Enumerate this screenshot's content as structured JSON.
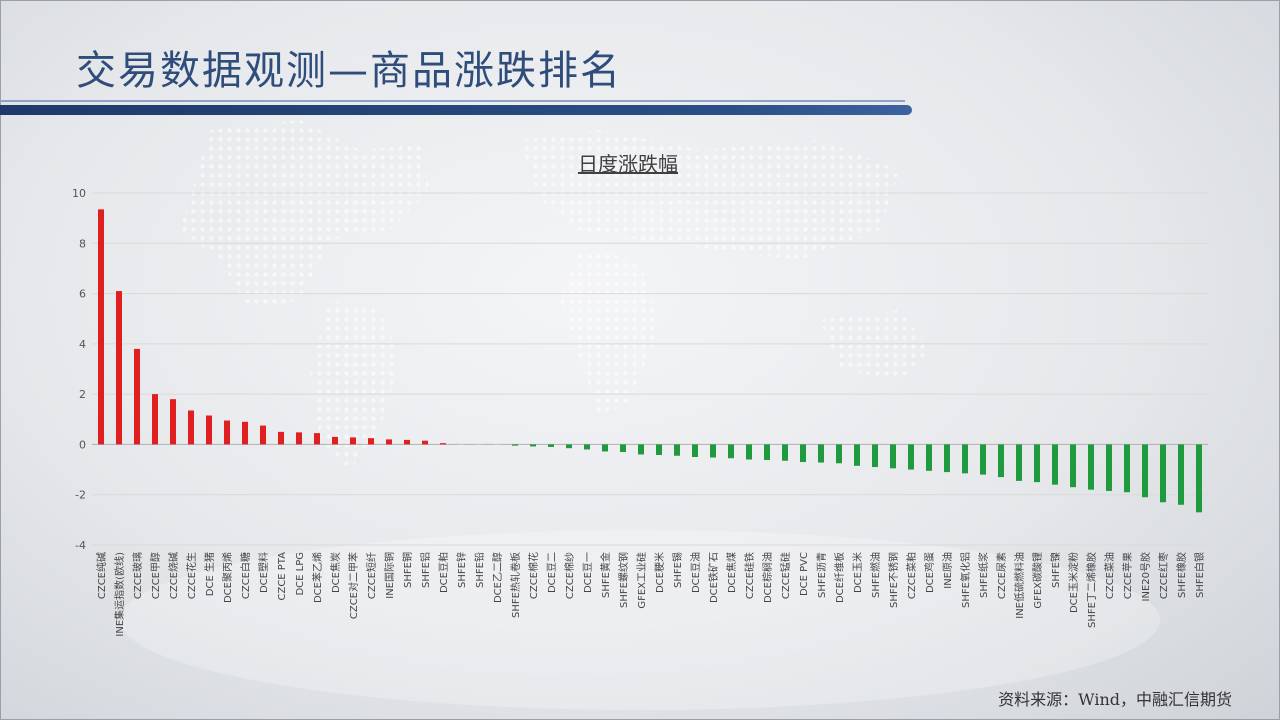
{
  "header": {
    "title": "交易数据观测—商品涨跌排名"
  },
  "footer": {
    "source": "资料来源：Wind，中融汇信期货"
  },
  "colors": {
    "up": "#e02020",
    "down": "#1f9a3e",
    "zero": "#c8c8c8",
    "title": "#2e4d7a"
  },
  "chart_data": {
    "type": "bar",
    "title": "日度涨跌幅",
    "xlabel": "",
    "ylabel": "",
    "ylim": [
      -4,
      10
    ],
    "yticks": [
      10,
      8,
      6,
      4,
      2,
      0,
      -2,
      -4
    ],
    "grid": true,
    "legend": "none",
    "categories": [
      "CZCE纯碱",
      "INE集运指数(欧线)",
      "CZCE玻璃",
      "CZCE甲醇",
      "CZCE烧碱",
      "CZCE花生",
      "DCE 生猪",
      "DCE聚丙烯",
      "CZCE白糖",
      "DCE塑料",
      "CZCE PTA",
      "DCE LPG",
      "DCE苯乙烯",
      "DCE焦炭",
      "CZCE对二甲苯",
      "CZCE短纤",
      "INE国际铜",
      "SHFE铜",
      "SHFE铝",
      "DCE豆粕",
      "SHFE锌",
      "SHFE铅",
      "DCE乙二醇",
      "SHFE热轧卷板",
      "CZCE棉花",
      "DCE豆二",
      "CZCE棉纱",
      "DCE豆一",
      "SHFE黄金",
      "SHFE螺纹钢",
      "GFEX工业硅",
      "DCE粳米",
      "SHFE锡",
      "DCE豆油",
      "DCE铁矿石",
      "DCE焦煤",
      "CZCE硅铁",
      "DCE棕榈油",
      "CZCE锰硅",
      "DCE PVC",
      "SHFE沥青",
      "DCE纤维板",
      "DCE玉米",
      "SHFE燃油",
      "SHFE不锈钢",
      "CZCE菜粕",
      "DCE鸡蛋",
      "INE原油",
      "SHFE氧化铝",
      "SHFE纸浆",
      "CZCE尿素",
      "INE低硫燃料油",
      "GFEX碳酸锂",
      "SHFE镍",
      "DCE玉米淀粉",
      "SHFE丁二烯橡胶",
      "CZCE菜油",
      "CZCE苹果",
      "INE20号胶",
      "CZCE红枣",
      "SHFE橡胶",
      "SHFE白银"
    ],
    "values": [
      9.35,
      6.1,
      3.8,
      2.0,
      1.8,
      1.35,
      1.15,
      0.95,
      0.9,
      0.75,
      0.5,
      0.48,
      0.45,
      0.3,
      0.28,
      0.25,
      0.2,
      0.18,
      0.15,
      0.05,
      0.0,
      0.0,
      0.0,
      -0.05,
      -0.08,
      -0.1,
      -0.15,
      -0.2,
      -0.28,
      -0.3,
      -0.4,
      -0.42,
      -0.45,
      -0.5,
      -0.52,
      -0.55,
      -0.6,
      -0.62,
      -0.65,
      -0.7,
      -0.72,
      -0.75,
      -0.85,
      -0.9,
      -0.95,
      -1.0,
      -1.05,
      -1.1,
      -1.15,
      -1.2,
      -1.3,
      -1.45,
      -1.5,
      -1.6,
      -1.7,
      -1.8,
      -1.85,
      -1.9,
      -2.1,
      -2.3,
      -2.4,
      -2.7
    ]
  }
}
